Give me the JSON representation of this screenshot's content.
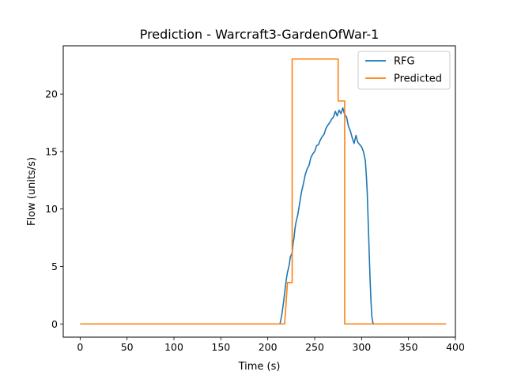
{
  "chart_data": {
    "type": "line",
    "title": "Prediction - Warcraft3-GardenOfWar-1",
    "xlabel": "Time (s)",
    "ylabel": "Flow (units/s)",
    "xlim": [
      -18,
      400
    ],
    "ylim": [
      -1.15,
      24.2
    ],
    "xticks": [
      0,
      50,
      100,
      150,
      200,
      250,
      300,
      350,
      400
    ],
    "yticks": [
      0,
      5,
      10,
      15,
      20
    ],
    "grid": false,
    "legend_position": "upper right",
    "series": [
      {
        "name": "RFG",
        "color": "#1f77b4",
        "x": [
          0,
          100,
          200,
          213,
          215,
          217,
          219,
          220,
          221,
          222,
          223,
          224,
          225,
          226,
          227,
          228,
          229,
          230,
          232,
          234,
          236,
          238,
          240,
          242,
          244,
          246,
          248,
          250,
          252,
          254,
          256,
          258,
          260,
          262,
          264,
          266,
          268,
          270,
          272,
          274,
          276,
          278,
          280,
          282,
          284,
          285,
          286,
          288,
          290,
          292,
          294,
          296,
          298,
          300,
          302,
          304,
          305,
          306,
          307,
          308,
          309,
          310,
          311,
          312,
          313,
          315,
          320,
          350,
          390
        ],
        "y": [
          0,
          0,
          0,
          0,
          0.8,
          2.0,
          3.4,
          4.0,
          4.5,
          4.8,
          5.2,
          5.8,
          6.0,
          6.2,
          7.0,
          7.5,
          8.3,
          8.8,
          9.5,
          10.5,
          11.5,
          12.2,
          13.0,
          13.5,
          13.8,
          14.5,
          14.8,
          15.0,
          15.5,
          15.6,
          16.0,
          16.3,
          16.5,
          17.0,
          17.3,
          17.5,
          17.8,
          18.0,
          18.5,
          18.1,
          18.6,
          18.3,
          18.8,
          18.2,
          18.0,
          17.6,
          17.2,
          16.8,
          16.2,
          15.7,
          16.4,
          15.8,
          15.6,
          15.4,
          15.0,
          14.2,
          13.0,
          11.5,
          9.0,
          6.5,
          4.0,
          2.0,
          0.6,
          0.1,
          0,
          0,
          0,
          0,
          0
        ]
      },
      {
        "name": "Predicted",
        "color": "#ff7f0e",
        "x": [
          0,
          218,
          221,
          221,
          226,
          226,
          275,
          275,
          282,
          282,
          390
        ],
        "y": [
          0,
          0,
          3.6,
          3.6,
          3.6,
          23.05,
          23.05,
          19.4,
          19.4,
          0,
          0
        ]
      }
    ]
  }
}
